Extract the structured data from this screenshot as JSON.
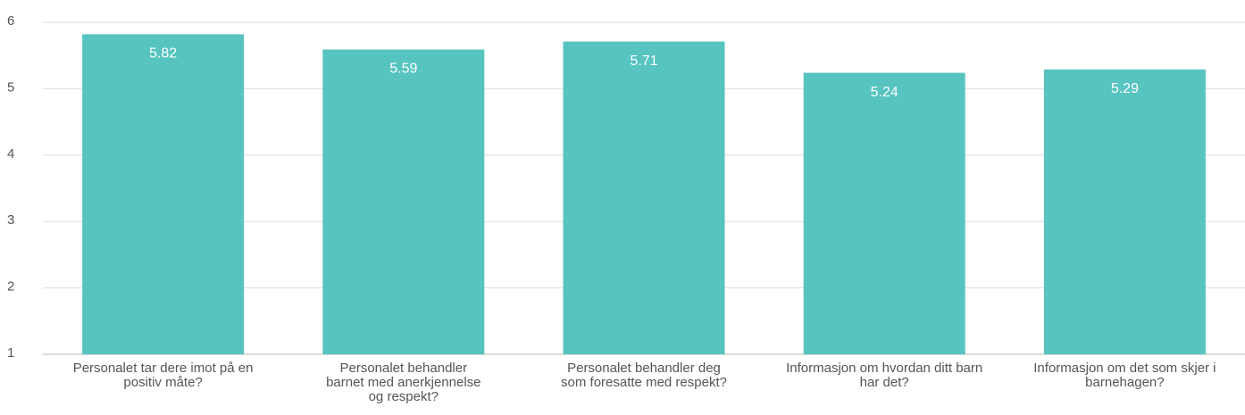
{
  "chart_data": {
    "type": "bar",
    "categories": [
      "Personalet tar dere imot på en positiv måte?",
      "Personalet behandler barnet med anerkjennelse og respekt?",
      "Personalet behandler deg som foresatte med respekt?",
      "Informasjon om hvordan ditt barn har det?",
      "Informasjon om det som skjer i barnehagen?"
    ],
    "values": [
      5.82,
      5.59,
      5.71,
      5.24,
      5.29
    ],
    "color": "#57c4c0",
    "ylim": [
      1,
      6
    ],
    "yticks": [
      1,
      2,
      3,
      4,
      5,
      6
    ],
    "grid": true
  }
}
